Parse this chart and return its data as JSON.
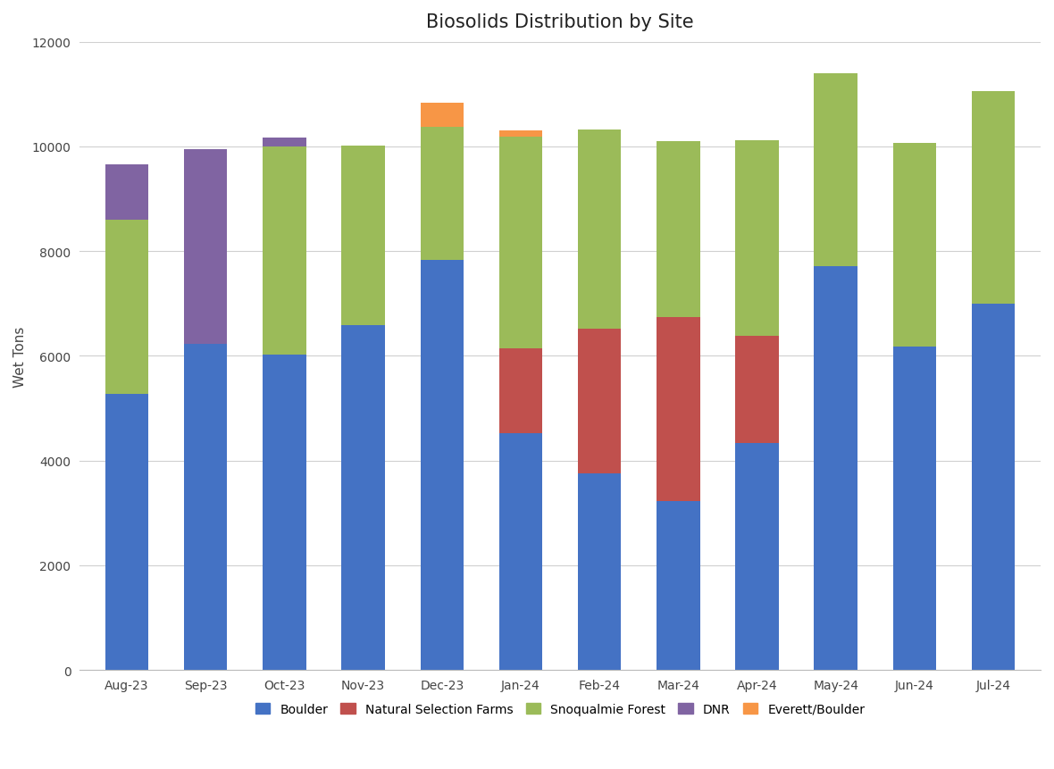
{
  "title": "Biosolids Distribution by Site",
  "ylabel": "Wet Tons",
  "categories": [
    "Aug-23",
    "Sep-23",
    "Oct-23",
    "Nov-23",
    "Dec-23",
    "Jan-24",
    "Feb-24",
    "Mar-24",
    "Apr-24",
    "May-24",
    "Jun-24",
    "Jul-24"
  ],
  "series": {
    "Boulder": [
      5270,
      6230,
      6030,
      6580,
      7830,
      4530,
      3750,
      3230,
      4330,
      7720,
      6170,
      6990
    ],
    "Natural Selection Farms": [
      0,
      0,
      0,
      0,
      0,
      1620,
      2760,
      3510,
      2060,
      0,
      0,
      0
    ],
    "Snoqualmie Forest": [
      3330,
      0,
      3970,
      3440,
      2540,
      4030,
      3820,
      3360,
      3730,
      3680,
      3890,
      4060
    ],
    "DNR": [
      1050,
      3720,
      170,
      0,
      0,
      0,
      0,
      0,
      0,
      0,
      0,
      0
    ],
    "Everett/Boulder": [
      0,
      0,
      0,
      0,
      460,
      130,
      0,
      0,
      0,
      0,
      0,
      0
    ]
  },
  "colors": {
    "Boulder": "#4472C4",
    "Natural Selection Farms": "#C0504D",
    "Snoqualmie Forest": "#9BBB59",
    "DNR": "#8064A2",
    "Everett/Boulder": "#F79646"
  },
  "ylim": [
    0,
    12000
  ],
  "yticks": [
    0,
    2000,
    4000,
    6000,
    8000,
    10000,
    12000
  ],
  "background_color": "#FFFFFF",
  "grid_color": "#D0D0D0",
  "title_fontsize": 15,
  "axis_fontsize": 11,
  "tick_fontsize": 10,
  "legend_fontsize": 10
}
